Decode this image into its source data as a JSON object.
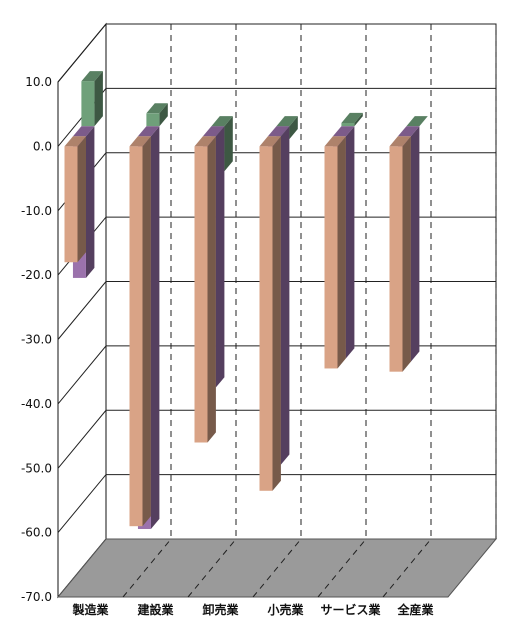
{
  "chart_data": {
    "type": "bar",
    "title": "",
    "xlabel": "",
    "ylabel": "",
    "ylim": [
      -70,
      10
    ],
    "yticks": [
      "10.0",
      "0.0",
      "-10.0",
      "-20.0",
      "-30.0",
      "-40.0",
      "-50.0",
      "-60.0",
      "-70.0"
    ],
    "categories": [
      "製造業",
      "建設業",
      "卸売業",
      "小売業",
      "サービス業",
      "全産業"
    ],
    "series": [
      {
        "values": [
          -18,
          -59,
          -46,
          -53.5,
          -34.5,
          -35
        ],
        "color": "#D9A386"
      },
      {
        "values": [
          -22,
          -61,
          -39,
          -51,
          -34.5,
          -35
        ],
        "color": "#9B72AC"
      },
      {
        "values": [
          7,
          2,
          -7,
          -2,
          0.5,
          0
        ],
        "color": "#6FA07A"
      }
    ],
    "grid": true,
    "style": "3d-bar",
    "legend": "none"
  }
}
